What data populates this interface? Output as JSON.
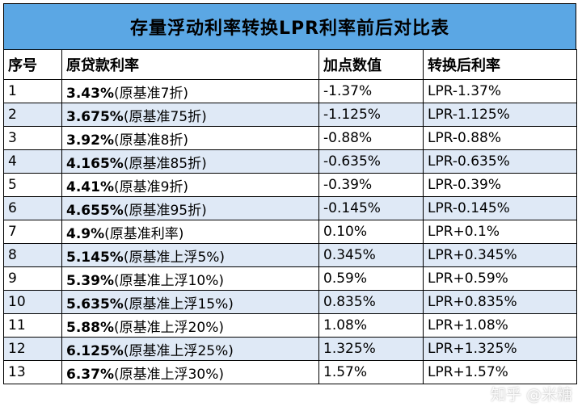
{
  "title": "存量浮动利率转换LPR利率前后对比表",
  "headers": [
    "序号",
    "原贷款利率",
    "加点数值",
    "转换后利率"
  ],
  "rows": [
    {
      "idx": "1",
      "rate": "3.43%",
      "note": "(原基准7折)",
      "bp": "-1.37%",
      "new_rate": "LPR-1.37%"
    },
    {
      "idx": "2",
      "rate": "3.675%",
      "note": "(原基准75折)",
      "bp": "-1.125%",
      "new_rate": "LPR-1.125%"
    },
    {
      "idx": "3",
      "rate": "3.92%",
      "note": "(原基准8折)",
      "bp": "-0.88%",
      "new_rate": "LPR-0.88%"
    },
    {
      "idx": "4",
      "rate": "4.165%",
      "note": "(原基准85折)",
      "bp": "-0.635%",
      "new_rate": "LPR-0.635%"
    },
    {
      "idx": "5",
      "rate": "4.41%",
      "note": "(原基准9折)",
      "bp": "-0.39%",
      "new_rate": "LPR-0.39%"
    },
    {
      "idx": "6",
      "rate": "4.655%",
      "note": "(原基准95折)",
      "bp": "-0.145%",
      "new_rate": "LPR-0.145%"
    },
    {
      "idx": "7",
      "rate": "4.9%",
      "note": "(原基准利率)",
      "bp": "0.10%",
      "new_rate": "LPR+0.1%"
    },
    {
      "idx": "8",
      "rate": "5.145%",
      "note": "(原基准上浮5%)",
      "bp": "0.345%",
      "new_rate": "LPR+0.345%"
    },
    {
      "idx": "9",
      "rate": "5.39%",
      "note": "(原基准上浮10%)",
      "bp": "0.59%",
      "new_rate": "LPR+0.59%"
    },
    {
      "idx": "10",
      "rate": "5.635%",
      "note": "(原基准上浮15%)",
      "bp": "0.835%",
      "new_rate": "LPR+0.835%"
    },
    {
      "idx": "11",
      "rate": "5.88%",
      "note": "(原基准上浮20%)",
      "bp": "1.08%",
      "new_rate": "LPR+1.08%"
    },
    {
      "idx": "12",
      "rate": "6.125%",
      "note": "(原基准上浮25%)",
      "bp": "1.325%",
      "new_rate": "LPR+1.325%"
    },
    {
      "idx": "13",
      "rate": "6.37%",
      "note": "(原基准上浮30%)",
      "bp": "1.57%",
      "new_rate": "LPR+1.57%"
    }
  ],
  "watermark": "知乎 @米糖",
  "colors": {
    "title_bg": "#5ba7e4",
    "stripe": "#dfe9f6"
  }
}
